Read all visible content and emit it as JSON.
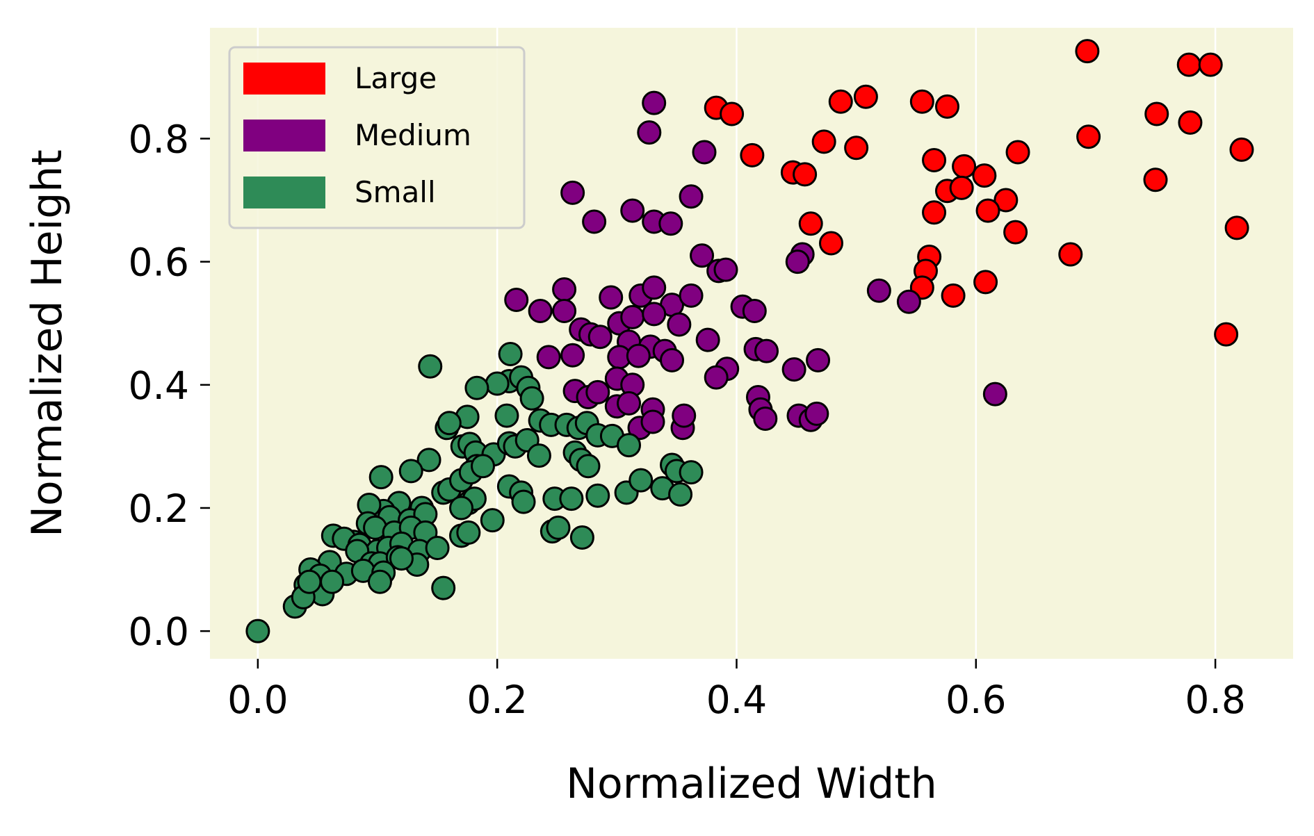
{
  "chart_data": {
    "type": "scatter",
    "xlabel": "Normalized Width",
    "ylabel": "Normalized Height",
    "xlim": [
      -0.04,
      0.865
    ],
    "ylim": [
      -0.045,
      0.98
    ],
    "xticks": [
      {
        "value": 0.0,
        "label": "0.0"
      },
      {
        "value": 0.2,
        "label": "0.2"
      },
      {
        "value": 0.4,
        "label": "0.4"
      },
      {
        "value": 0.6,
        "label": "0.6"
      },
      {
        "value": 0.8,
        "label": "0.8"
      }
    ],
    "yticks": [
      {
        "value": 0.0,
        "label": "0.0"
      },
      {
        "value": 0.2,
        "label": "0.2"
      },
      {
        "value": 0.4,
        "label": "0.4"
      },
      {
        "value": 0.6,
        "label": "0.6"
      },
      {
        "value": 0.8,
        "label": "0.8"
      }
    ],
    "grid": "vertical",
    "legend_position": "top-left",
    "background_color": "#f5f5dc",
    "series": [
      {
        "name": "Large",
        "color": "#ff0000",
        "points": [
          [
            0.693,
            0.942
          ],
          [
            0.778,
            0.92
          ],
          [
            0.796,
            0.92
          ],
          [
            0.383,
            0.85
          ],
          [
            0.396,
            0.84
          ],
          [
            0.487,
            0.86
          ],
          [
            0.508,
            0.868
          ],
          [
            0.555,
            0.86
          ],
          [
            0.576,
            0.852
          ],
          [
            0.751,
            0.84
          ],
          [
            0.779,
            0.826
          ],
          [
            0.694,
            0.803
          ],
          [
            0.822,
            0.782
          ],
          [
            0.413,
            0.773
          ],
          [
            0.473,
            0.795
          ],
          [
            0.5,
            0.785
          ],
          [
            0.565,
            0.765
          ],
          [
            0.59,
            0.755
          ],
          [
            0.607,
            0.74
          ],
          [
            0.635,
            0.778
          ],
          [
            0.75,
            0.733
          ],
          [
            0.447,
            0.745
          ],
          [
            0.457,
            0.742
          ],
          [
            0.576,
            0.715
          ],
          [
            0.588,
            0.72
          ],
          [
            0.625,
            0.7
          ],
          [
            0.61,
            0.683
          ],
          [
            0.565,
            0.68
          ],
          [
            0.462,
            0.662
          ],
          [
            0.633,
            0.648
          ],
          [
            0.818,
            0.655
          ],
          [
            0.479,
            0.63
          ],
          [
            0.679,
            0.612
          ],
          [
            0.561,
            0.608
          ],
          [
            0.558,
            0.585
          ],
          [
            0.608,
            0.567
          ],
          [
            0.555,
            0.558
          ],
          [
            0.581,
            0.545
          ],
          [
            0.809,
            0.482
          ]
        ]
      },
      {
        "name": "Medium",
        "color": "#800080",
        "points": [
          [
            0.331,
            0.858
          ],
          [
            0.327,
            0.81
          ],
          [
            0.373,
            0.778
          ],
          [
            0.263,
            0.712
          ],
          [
            0.313,
            0.683
          ],
          [
            0.362,
            0.706
          ],
          [
            0.281,
            0.665
          ],
          [
            0.331,
            0.665
          ],
          [
            0.345,
            0.662
          ],
          [
            0.371,
            0.61
          ],
          [
            0.385,
            0.585
          ],
          [
            0.391,
            0.587
          ],
          [
            0.455,
            0.612
          ],
          [
            0.451,
            0.6
          ],
          [
            0.519,
            0.553
          ],
          [
            0.544,
            0.535
          ],
          [
            0.216,
            0.538
          ],
          [
            0.236,
            0.52
          ],
          [
            0.256,
            0.555
          ],
          [
            0.256,
            0.52
          ],
          [
            0.295,
            0.542
          ],
          [
            0.32,
            0.545
          ],
          [
            0.331,
            0.558
          ],
          [
            0.346,
            0.53
          ],
          [
            0.362,
            0.545
          ],
          [
            0.302,
            0.5
          ],
          [
            0.313,
            0.51
          ],
          [
            0.331,
            0.515
          ],
          [
            0.352,
            0.498
          ],
          [
            0.405,
            0.527
          ],
          [
            0.415,
            0.52
          ],
          [
            0.27,
            0.49
          ],
          [
            0.278,
            0.482
          ],
          [
            0.286,
            0.478
          ],
          [
            0.31,
            0.47
          ],
          [
            0.328,
            0.462
          ],
          [
            0.34,
            0.455
          ],
          [
            0.346,
            0.44
          ],
          [
            0.376,
            0.473
          ],
          [
            0.416,
            0.458
          ],
          [
            0.425,
            0.455
          ],
          [
            0.302,
            0.445
          ],
          [
            0.318,
            0.447
          ],
          [
            0.243,
            0.445
          ],
          [
            0.263,
            0.448
          ],
          [
            0.392,
            0.426
          ],
          [
            0.383,
            0.412
          ],
          [
            0.448,
            0.425
          ],
          [
            0.468,
            0.44
          ],
          [
            0.3,
            0.41
          ],
          [
            0.313,
            0.4
          ],
          [
            0.265,
            0.39
          ],
          [
            0.276,
            0.38
          ],
          [
            0.284,
            0.388
          ],
          [
            0.418,
            0.38
          ],
          [
            0.42,
            0.36
          ],
          [
            0.424,
            0.345
          ],
          [
            0.3,
            0.365
          ],
          [
            0.31,
            0.37
          ],
          [
            0.33,
            0.36
          ],
          [
            0.452,
            0.35
          ],
          [
            0.462,
            0.343
          ],
          [
            0.467,
            0.353
          ],
          [
            0.319,
            0.33
          ],
          [
            0.33,
            0.34
          ],
          [
            0.355,
            0.33
          ],
          [
            0.356,
            0.35
          ],
          [
            0.616,
            0.385
          ]
        ]
      },
      {
        "name": "Small",
        "color": "#2e8b57",
        "points": [
          [
            0.144,
            0.43
          ],
          [
            0.211,
            0.45
          ],
          [
            0.21,
            0.406
          ],
          [
            0.22,
            0.412
          ],
          [
            0.2,
            0.402
          ],
          [
            0.226,
            0.395
          ],
          [
            0.183,
            0.395
          ],
          [
            0.229,
            0.378
          ],
          [
            0.236,
            0.342
          ],
          [
            0.208,
            0.35
          ],
          [
            0.175,
            0.348
          ],
          [
            0.158,
            0.33
          ],
          [
            0.16,
            0.338
          ],
          [
            0.171,
            0.3
          ],
          [
            0.177,
            0.304
          ],
          [
            0.182,
            0.29
          ],
          [
            0.197,
            0.287
          ],
          [
            0.21,
            0.305
          ],
          [
            0.215,
            0.3
          ],
          [
            0.225,
            0.31
          ],
          [
            0.235,
            0.285
          ],
          [
            0.245,
            0.335
          ],
          [
            0.258,
            0.335
          ],
          [
            0.268,
            0.33
          ],
          [
            0.275,
            0.338
          ],
          [
            0.265,
            0.29
          ],
          [
            0.27,
            0.278
          ],
          [
            0.276,
            0.268
          ],
          [
            0.284,
            0.318
          ],
          [
            0.296,
            0.317
          ],
          [
            0.31,
            0.302
          ],
          [
            0.183,
            0.268
          ],
          [
            0.143,
            0.278
          ],
          [
            0.128,
            0.26
          ],
          [
            0.103,
            0.25
          ],
          [
            0.155,
            0.225
          ],
          [
            0.16,
            0.23
          ],
          [
            0.17,
            0.245
          ],
          [
            0.178,
            0.258
          ],
          [
            0.188,
            0.268
          ],
          [
            0.21,
            0.235
          ],
          [
            0.22,
            0.225
          ],
          [
            0.222,
            0.21
          ],
          [
            0.248,
            0.215
          ],
          [
            0.262,
            0.215
          ],
          [
            0.284,
            0.22
          ],
          [
            0.308,
            0.225
          ],
          [
            0.32,
            0.245
          ],
          [
            0.338,
            0.232
          ],
          [
            0.346,
            0.27
          ],
          [
            0.35,
            0.26
          ],
          [
            0.353,
            0.222
          ],
          [
            0.362,
            0.258
          ],
          [
            0.176,
            0.208
          ],
          [
            0.181,
            0.215
          ],
          [
            0.17,
            0.2
          ],
          [
            0.137,
            0.2
          ],
          [
            0.118,
            0.208
          ],
          [
            0.105,
            0.195
          ],
          [
            0.093,
            0.205
          ],
          [
            0.11,
            0.185
          ],
          [
            0.127,
            0.18
          ],
          [
            0.14,
            0.19
          ],
          [
            0.196,
            0.18
          ],
          [
            0.092,
            0.175
          ],
          [
            0.098,
            0.168
          ],
          [
            0.114,
            0.16
          ],
          [
            0.128,
            0.168
          ],
          [
            0.14,
            0.16
          ],
          [
            0.08,
            0.145
          ],
          [
            0.063,
            0.155
          ],
          [
            0.072,
            0.15
          ],
          [
            0.085,
            0.14
          ],
          [
            0.1,
            0.13
          ],
          [
            0.109,
            0.135
          ],
          [
            0.12,
            0.142
          ],
          [
            0.135,
            0.13
          ],
          [
            0.15,
            0.135
          ],
          [
            0.17,
            0.155
          ],
          [
            0.176,
            0.16
          ],
          [
            0.246,
            0.162
          ],
          [
            0.251,
            0.168
          ],
          [
            0.271,
            0.152
          ],
          [
            0.06,
            0.112
          ],
          [
            0.083,
            0.13
          ],
          [
            0.095,
            0.11
          ],
          [
            0.102,
            0.11
          ],
          [
            0.117,
            0.12
          ],
          [
            0.133,
            0.108
          ],
          [
            0.044,
            0.1
          ],
          [
            0.052,
            0.09
          ],
          [
            0.074,
            0.093
          ],
          [
            0.088,
            0.098
          ],
          [
            0.105,
            0.095
          ],
          [
            0.12,
            0.118
          ],
          [
            0.04,
            0.075
          ],
          [
            0.054,
            0.06
          ],
          [
            0.062,
            0.08
          ],
          [
            0.102,
            0.08
          ],
          [
            0.155,
            0.07
          ],
          [
            0.031,
            0.04
          ],
          [
            0.038,
            0.055
          ],
          [
            0.043,
            0.08
          ],
          [
            0.0,
            0.0
          ]
        ]
      }
    ]
  }
}
